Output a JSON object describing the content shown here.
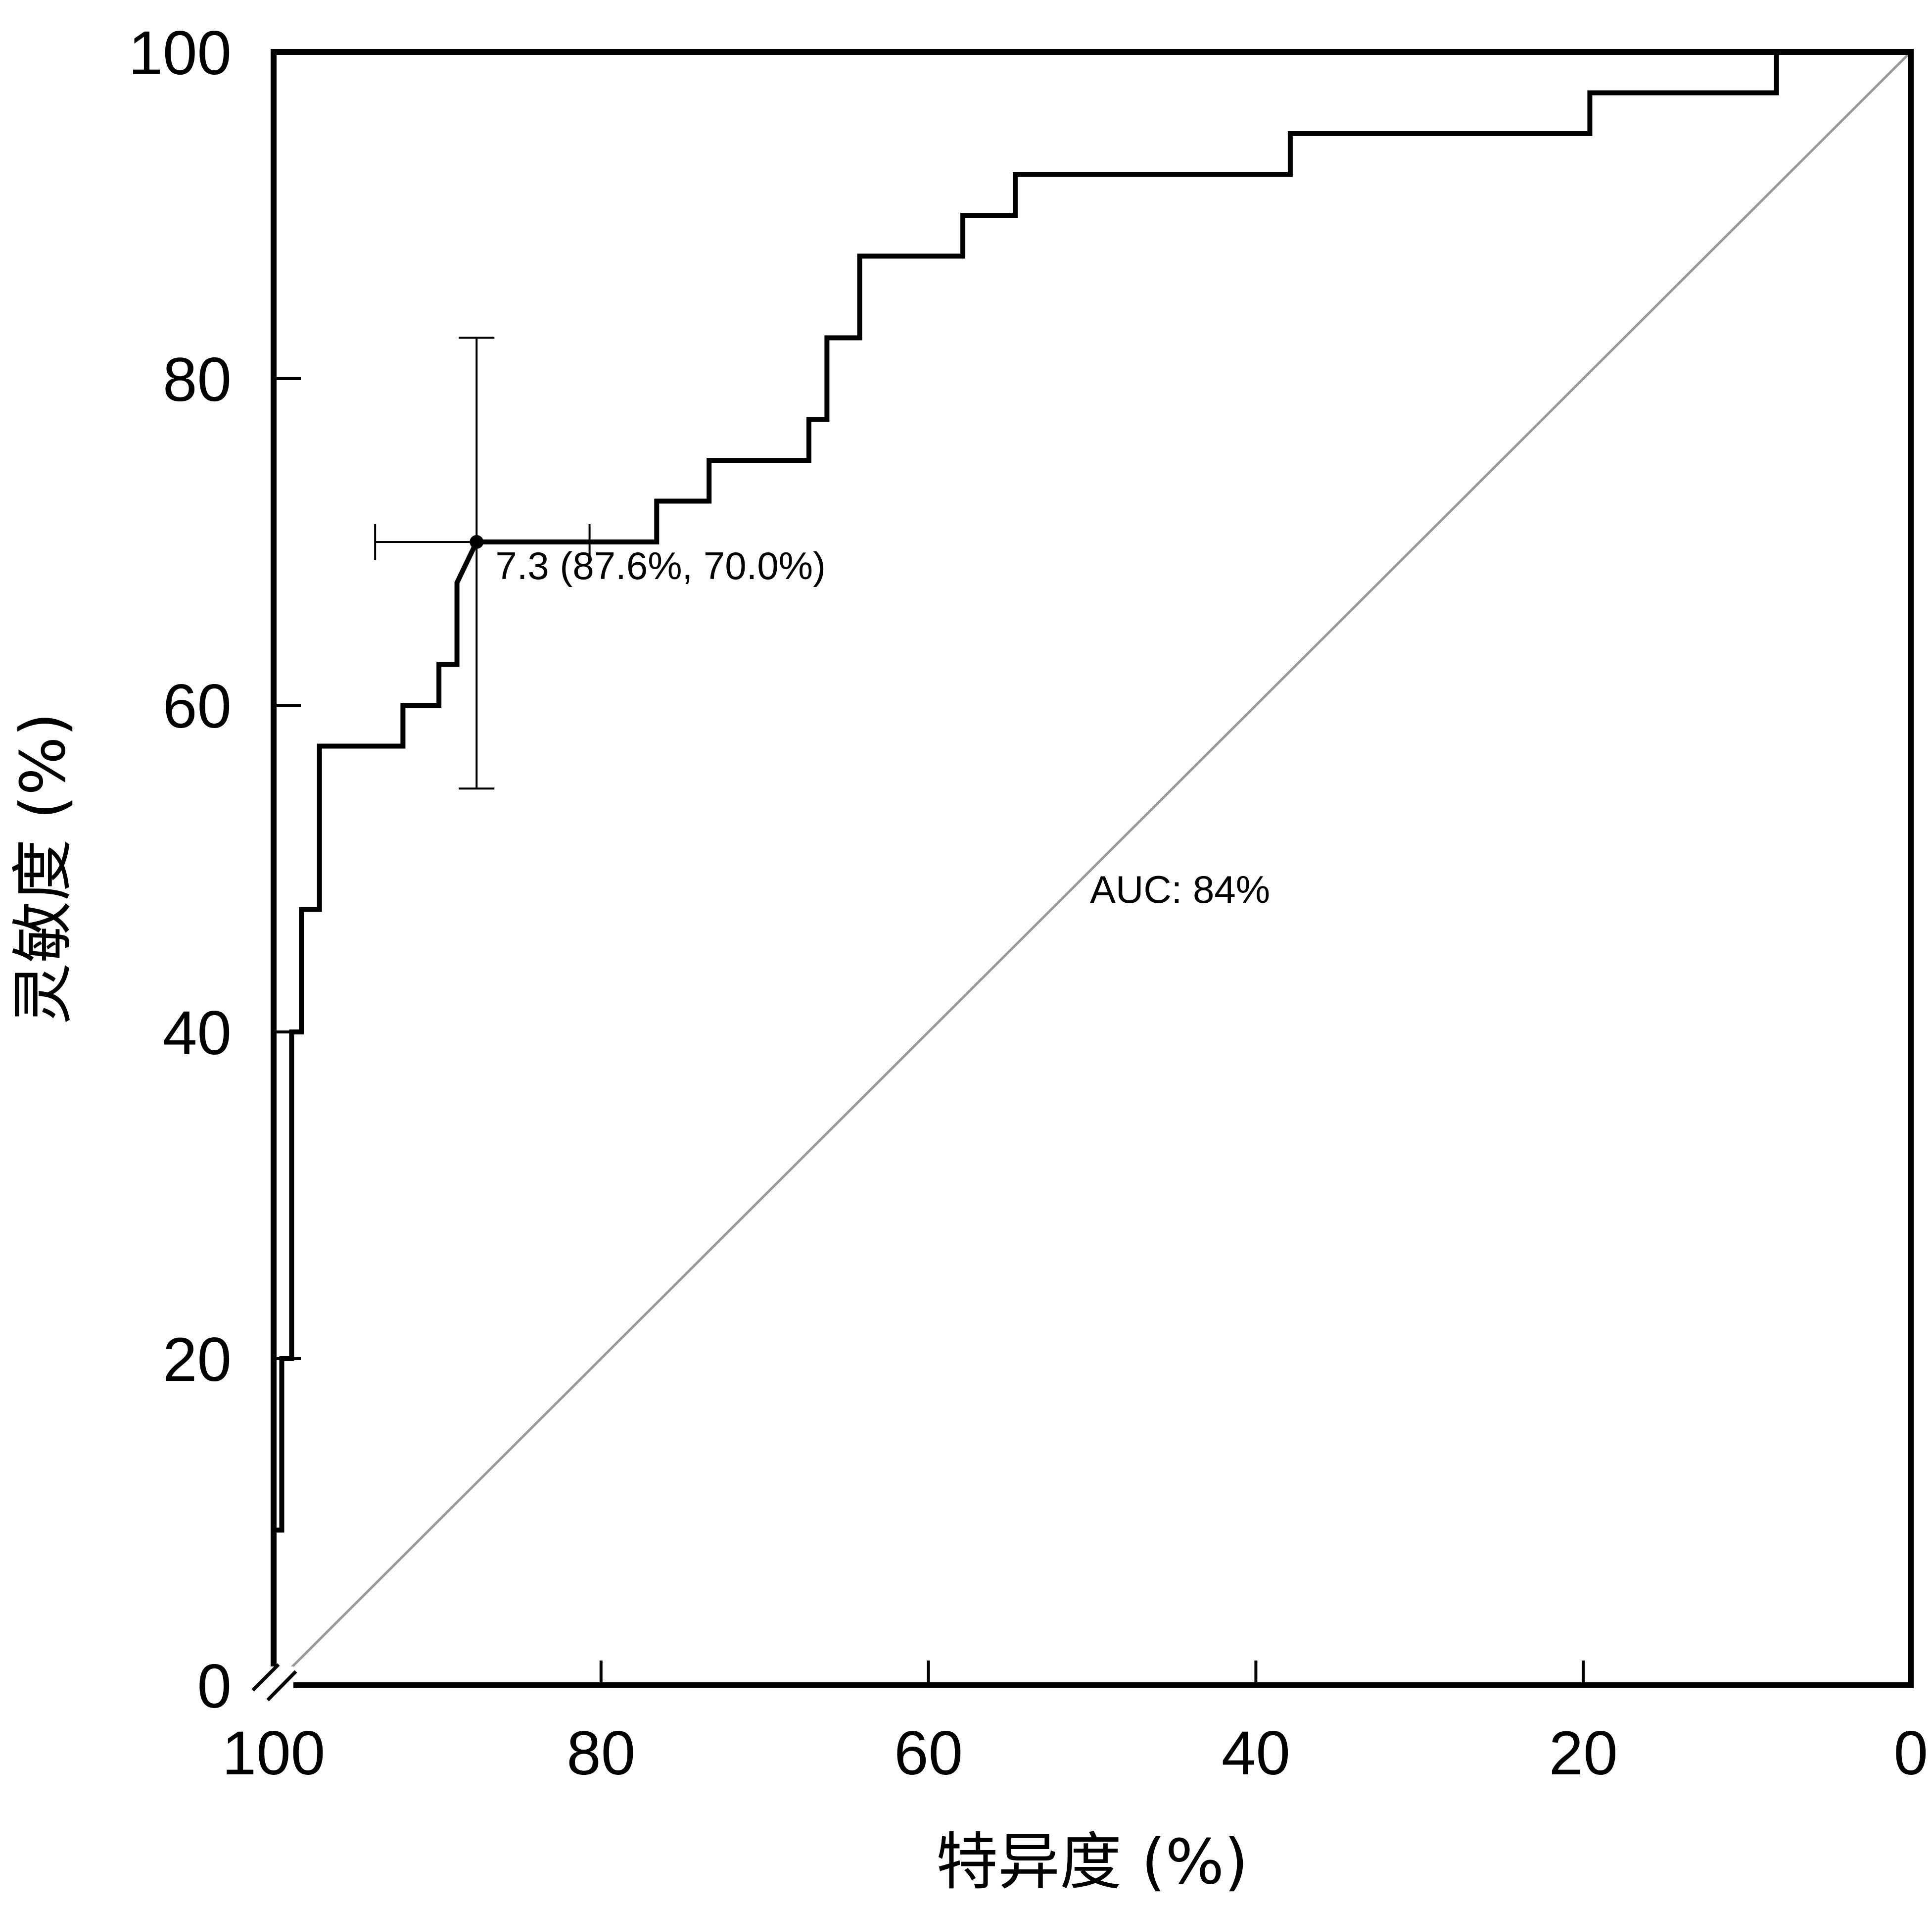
{
  "chart_data": {
    "type": "line",
    "xlabel": "特异度 (%)",
    "ylabel": "灵敏度 (%)",
    "xlim": [
      100,
      0
    ],
    "ylim": [
      0,
      100
    ],
    "x_reversed": true,
    "x_ticks": [
      100,
      80,
      60,
      40,
      20,
      0
    ],
    "y_ticks": [
      0,
      20,
      40,
      60,
      80,
      100
    ],
    "axis_break": true,
    "grid": false,
    "legend": "none",
    "series": [
      {
        "style": "step",
        "color": "#000000",
        "specificity": [
          100,
          99.5,
          99.5,
          98.9,
          98.9,
          98.3,
          98.3,
          97.2,
          97.2,
          92.1,
          92.1,
          89.9,
          89.9,
          88.8,
          88.8,
          87.6,
          76.6,
          76.6,
          73.4,
          73.4,
          67.3,
          67.3,
          66.2,
          66.2,
          64.2,
          64.2,
          57.9,
          57.9,
          54.7,
          54.7,
          37.9,
          37.9,
          19.6,
          19.6,
          8.2,
          8.2,
          0
        ],
        "sensitivity": [
          9.5,
          9.5,
          20,
          20,
          40,
          40,
          47.5,
          47.5,
          57.5,
          57.5,
          60,
          60,
          62.5,
          62.5,
          67.5,
          70,
          70,
          72.5,
          72.5,
          75,
          75,
          77.5,
          77.5,
          82.5,
          82.5,
          87.5,
          87.5,
          90,
          90,
          92.5,
          92.5,
          95,
          95,
          97.5,
          97.5,
          100,
          100
        ]
      },
      {
        "style": "reference",
        "color": "#999999",
        "specificity": [
          100,
          0
        ],
        "sensitivity": [
          0,
          100
        ]
      }
    ],
    "optimal_point": {
      "specificity": 87.6,
      "sensitivity": 70.0,
      "sens_ci": [
        54.9,
        82.5
      ],
      "spec_ci": [
        80.7,
        93.8
      ],
      "label": "7.3 (87.6%, 70.0%)"
    },
    "auc_label": "AUC: 84%"
  }
}
